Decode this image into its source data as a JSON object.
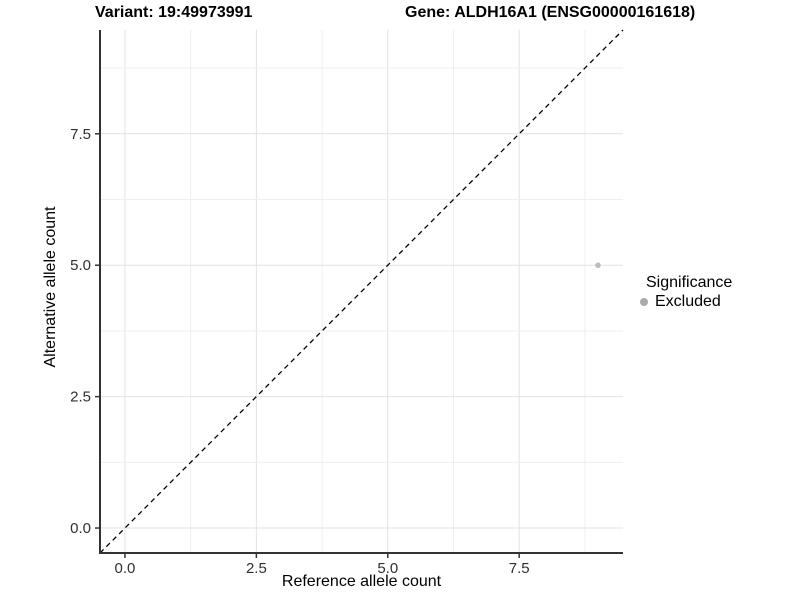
{
  "chart_data": {
    "type": "scatter",
    "titles": {
      "left": "Variant: 19:49973991",
      "right": "Gene: ALDH16A1 (ENSG00000161618)"
    },
    "xlabel": "Reference allele count",
    "ylabel": "Alternative allele count",
    "xlim": [
      -0.475,
      9.475
    ],
    "ylim": [
      -0.475,
      9.475
    ],
    "x_major_ticks": [
      0,
      2.5,
      5,
      7.5
    ],
    "y_major_ticks": [
      0,
      2.5,
      5,
      7.5
    ],
    "x_tick_labels": [
      "0.0",
      "2.5",
      "5.0",
      "7.5"
    ],
    "y_tick_labels": [
      "0.0",
      "2.5",
      "5.0",
      "7.5"
    ],
    "minor_grid_step": 1.25,
    "grid": true,
    "reference_line": {
      "style": "dashed",
      "slope": 1,
      "intercept": 0,
      "color": "#000000"
    },
    "series": [
      {
        "name": "Excluded",
        "color": "#bebebe",
        "point_radius": 2.8,
        "points": [
          {
            "x": 9,
            "y": 5
          }
        ]
      }
    ],
    "legend": {
      "title": "Significance",
      "position": "right",
      "items": [
        {
          "label": "Excluded",
          "color": "#aaaaaa"
        }
      ]
    },
    "colors": {
      "background": "#ffffff",
      "grid_major": "#e2e2e2",
      "grid_minor": "#efefef",
      "axis_line": "#333333",
      "tick_mark": "#333333",
      "tick_label": "#303030",
      "title": "#000000"
    }
  }
}
